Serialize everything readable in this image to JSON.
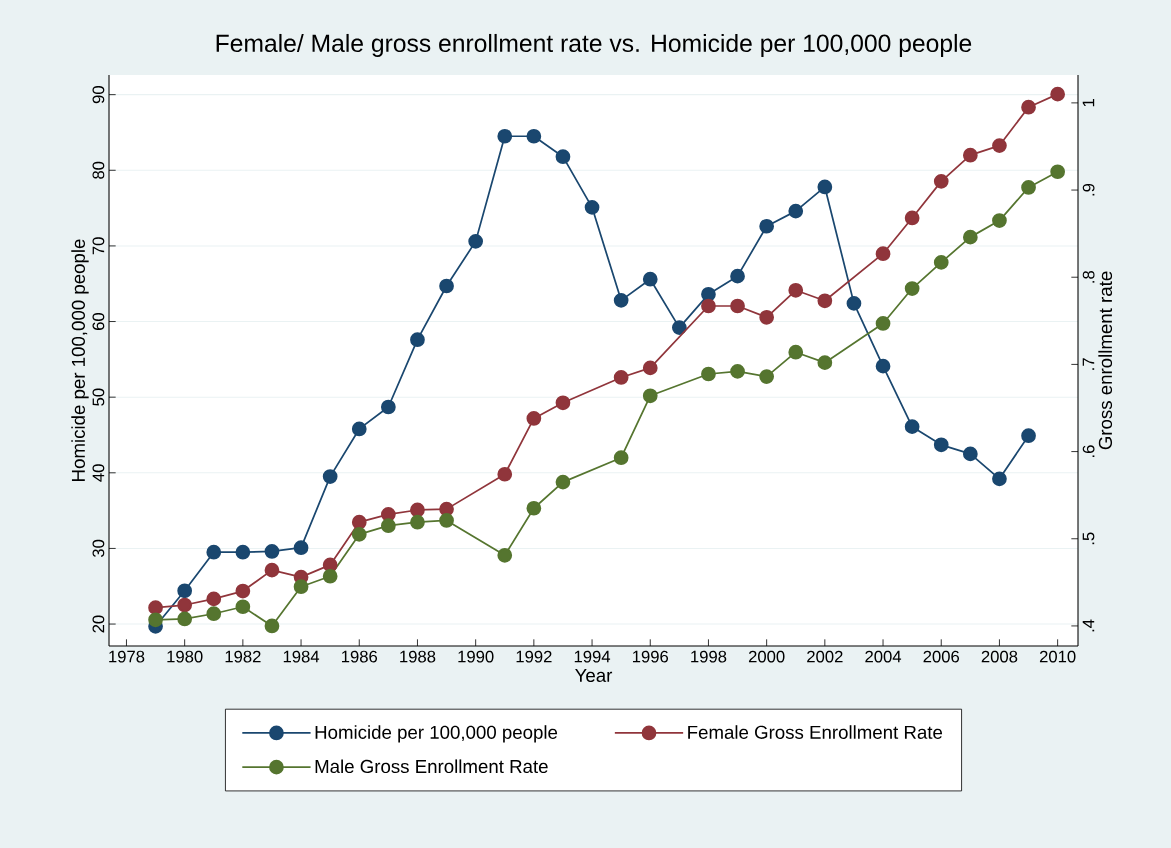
{
  "chart_data": {
    "type": "line",
    "title": "Female/ Male gross enrollment rate vs. Homicide per 100,000 people",
    "xlabel": "Year",
    "ylabel": "Homicide per 100,000 people",
    "y2label": "Gross enrollment rate",
    "xlim": [
      1977.4,
      2010.7
    ],
    "xticks": [
      1978,
      1980,
      1982,
      1984,
      1986,
      1988,
      1990,
      1992,
      1994,
      1996,
      1998,
      2000,
      2002,
      2004,
      2006,
      2008,
      2010
    ],
    "ylim": [
      17.1,
      92.6
    ],
    "yticks": [
      20,
      30,
      40,
      50,
      60,
      70,
      80,
      90
    ],
    "y2lim": [
      0.377,
      1.032
    ],
    "y2ticks": [
      {
        "value": 0.4,
        "label": ".4"
      },
      {
        "value": 0.5,
        "label": ".5"
      },
      {
        "value": 0.6,
        "label": ".6"
      },
      {
        "value": 0.7,
        "label": ".7"
      },
      {
        "value": 0.8,
        "label": ".8"
      },
      {
        "value": 0.9,
        "label": ".9"
      },
      1
    ],
    "grid": "y",
    "legend": "bottom",
    "marker": "circle",
    "line_style": "solid",
    "series": [
      {
        "name": "Homicide per 100,000 people",
        "color": "#1a476f",
        "x": [
          1979,
          1980,
          1981,
          1982,
          1983,
          1984,
          1985,
          1986,
          1987,
          1988,
          1989,
          1990,
          1991,
          1992,
          1993,
          1994,
          1995,
          1996,
          1997,
          1998,
          1999,
          2000,
          2001,
          2002,
          2003,
          2004,
          2005,
          2006,
          2007,
          2008,
          2009
        ],
        "values": [
          19.7,
          24.4,
          29.5,
          29.5,
          29.6,
          30.1,
          39.5,
          45.8,
          48.7,
          57.6,
          64.7,
          70.6,
          84.5,
          84.5,
          81.8,
          75.1,
          62.8,
          65.6,
          59.2,
          63.6,
          66.0,
          72.6,
          74.6,
          77.8,
          62.4,
          54.1,
          46.1,
          43.7,
          42.5,
          39.2,
          44.9
        ]
      },
      {
        "name": "Female Gross Enrollment Rate",
        "color": "#90353b",
        "axis": "y2",
        "x": [
          1979,
          1980,
          1981,
          1982,
          1983,
          1984,
          1985,
          1986,
          1987,
          1988,
          1989,
          1991,
          1992,
          1993,
          1995,
          1996,
          1998,
          1999,
          2000,
          2001,
          2002,
          2004,
          2005,
          2006,
          2007,
          2008,
          2009,
          2010
        ],
        "values": [
          0.421,
          0.424,
          0.431,
          0.44,
          0.464,
          0.456,
          0.47,
          0.519,
          0.528,
          0.533,
          0.534,
          0.574,
          0.638,
          0.656,
          0.685,
          0.696,
          0.767,
          0.767,
          0.754,
          0.785,
          0.773,
          0.827,
          0.868,
          0.91,
          0.94,
          0.951,
          0.995,
          1.01
        ]
      },
      {
        "name": "Male Gross Enrollment Rate",
        "color": "#55752f",
        "axis": "y2",
        "x": [
          1979,
          1980,
          1981,
          1982,
          1983,
          1984,
          1985,
          1986,
          1987,
          1988,
          1989,
          1991,
          1992,
          1993,
          1995,
          1996,
          1998,
          1999,
          2000,
          2001,
          2002,
          2004,
          2005,
          2006,
          2007,
          2008,
          2009,
          2010
        ],
        "values": [
          0.407,
          0.408,
          0.414,
          0.422,
          0.4,
          0.445,
          0.457,
          0.505,
          0.515,
          0.519,
          0.521,
          0.481,
          0.535,
          0.565,
          0.593,
          0.664,
          0.689,
          0.692,
          0.686,
          0.714,
          0.702,
          0.747,
          0.787,
          0.817,
          0.846,
          0.865,
          0.903,
          0.921
        ]
      }
    ]
  }
}
